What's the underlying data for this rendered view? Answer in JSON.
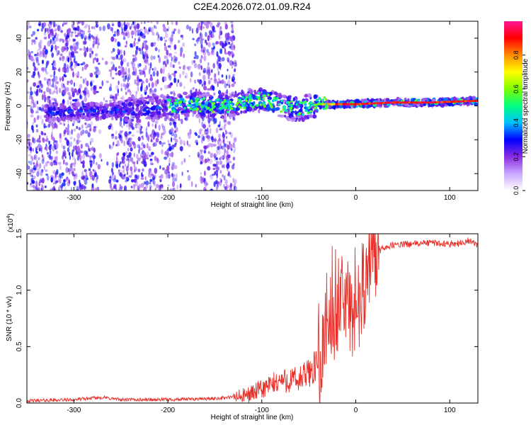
{
  "title": "C2E4.2026.072.01.09.R24",
  "colors": {
    "snr_line": "#e8302a",
    "spectrogram_low": "#a066ff",
    "axis": "#000000"
  },
  "chart_data": [
    {
      "type": "heatmap",
      "name": "spectrogram",
      "xlabel": "Height of straight line (km)",
      "ylabel": "Frequency (Hz)",
      "xlim": [
        -350,
        130
      ],
      "ylim": [
        -50,
        50
      ],
      "xticks": [
        -300,
        -200,
        -100,
        0,
        100
      ],
      "xtick_labels": [
        "-300",
        "-200",
        "-100",
        "0",
        "100"
      ],
      "yticks": [
        -40,
        -20,
        0,
        20,
        40
      ],
      "ytick_labels": [
        "-40",
        "-20",
        "0",
        "20",
        "40"
      ],
      "colorbar": {
        "label": "Normalized spectral amplitude",
        "range": [
          0.0,
          1.0
        ],
        "ticks": [
          0.0,
          0.2,
          0.4,
          0.6,
          0.8
        ],
        "tick_labels": [
          "0.0",
          "0.2",
          "0.4",
          "0.6",
          "0.8"
        ],
        "colormap": [
          "#ffffff",
          "#c9a8ff",
          "#8a2be2",
          "#0000ff",
          "#00bfff",
          "#00ff80",
          "#7fff00",
          "#ffff00",
          "#ff8c00",
          "#ff0000",
          "#ff1493"
        ]
      },
      "noise_region_x": [
        -350,
        -128
      ],
      "signal_band_center_hz": [
        {
          "x": -320,
          "f": -4
        },
        {
          "x": -280,
          "f": -3
        },
        {
          "x": -220,
          "f": -2
        },
        {
          "x": -180,
          "f": 1
        },
        {
          "x": -140,
          "f": 0
        },
        {
          "x": -100,
          "f": 4
        },
        {
          "x": -80,
          "f": 0
        },
        {
          "x": -60,
          "f": -2
        },
        {
          "x": -40,
          "f": 1
        },
        {
          "x": -20,
          "f": 1
        },
        {
          "x": 0,
          "f": 1
        },
        {
          "x": 40,
          "f": 2
        },
        {
          "x": 80,
          "f": 2
        },
        {
          "x": 130,
          "f": 3
        }
      ]
    },
    {
      "type": "line",
      "name": "snr",
      "xlabel": "Height of straight line (km)",
      "ylabel": "SNR (10 * v/v)",
      "scale_label": "(x10",
      "scale_exponent": "4",
      "scale_suffix": ")",
      "xlim": [
        -350,
        130
      ],
      "ylim": [
        0.0,
        1.5
      ],
      "xticks": [
        -300,
        -200,
        -100,
        0,
        100
      ],
      "xtick_labels": [
        "-300",
        "-200",
        "-100",
        "0",
        "100"
      ],
      "yticks": [
        0.0,
        0.5,
        1.0,
        1.5
      ],
      "ytick_labels": [
        "0.0",
        "0.5",
        "1.0",
        "1.5"
      ],
      "series": [
        {
          "name": "SNR",
          "x": [
            -350,
            -300,
            -270,
            -250,
            -200,
            -150,
            -120,
            -100,
            -80,
            -60,
            -45,
            -35,
            -30,
            -25,
            -20,
            -15,
            -10,
            -5,
            0,
            10,
            20,
            30,
            40,
            60,
            80,
            100,
            115,
            120,
            130
          ],
          "y": [
            0.02,
            0.03,
            0.05,
            0.03,
            0.03,
            0.04,
            0.06,
            0.12,
            0.2,
            0.2,
            0.3,
            0.45,
            0.85,
            0.8,
            0.8,
            0.9,
            0.9,
            0.8,
            0.8,
            1.1,
            1.3,
            1.38,
            1.4,
            1.41,
            1.42,
            1.41,
            1.42,
            1.44,
            1.4
          ]
        }
      ]
    }
  ]
}
